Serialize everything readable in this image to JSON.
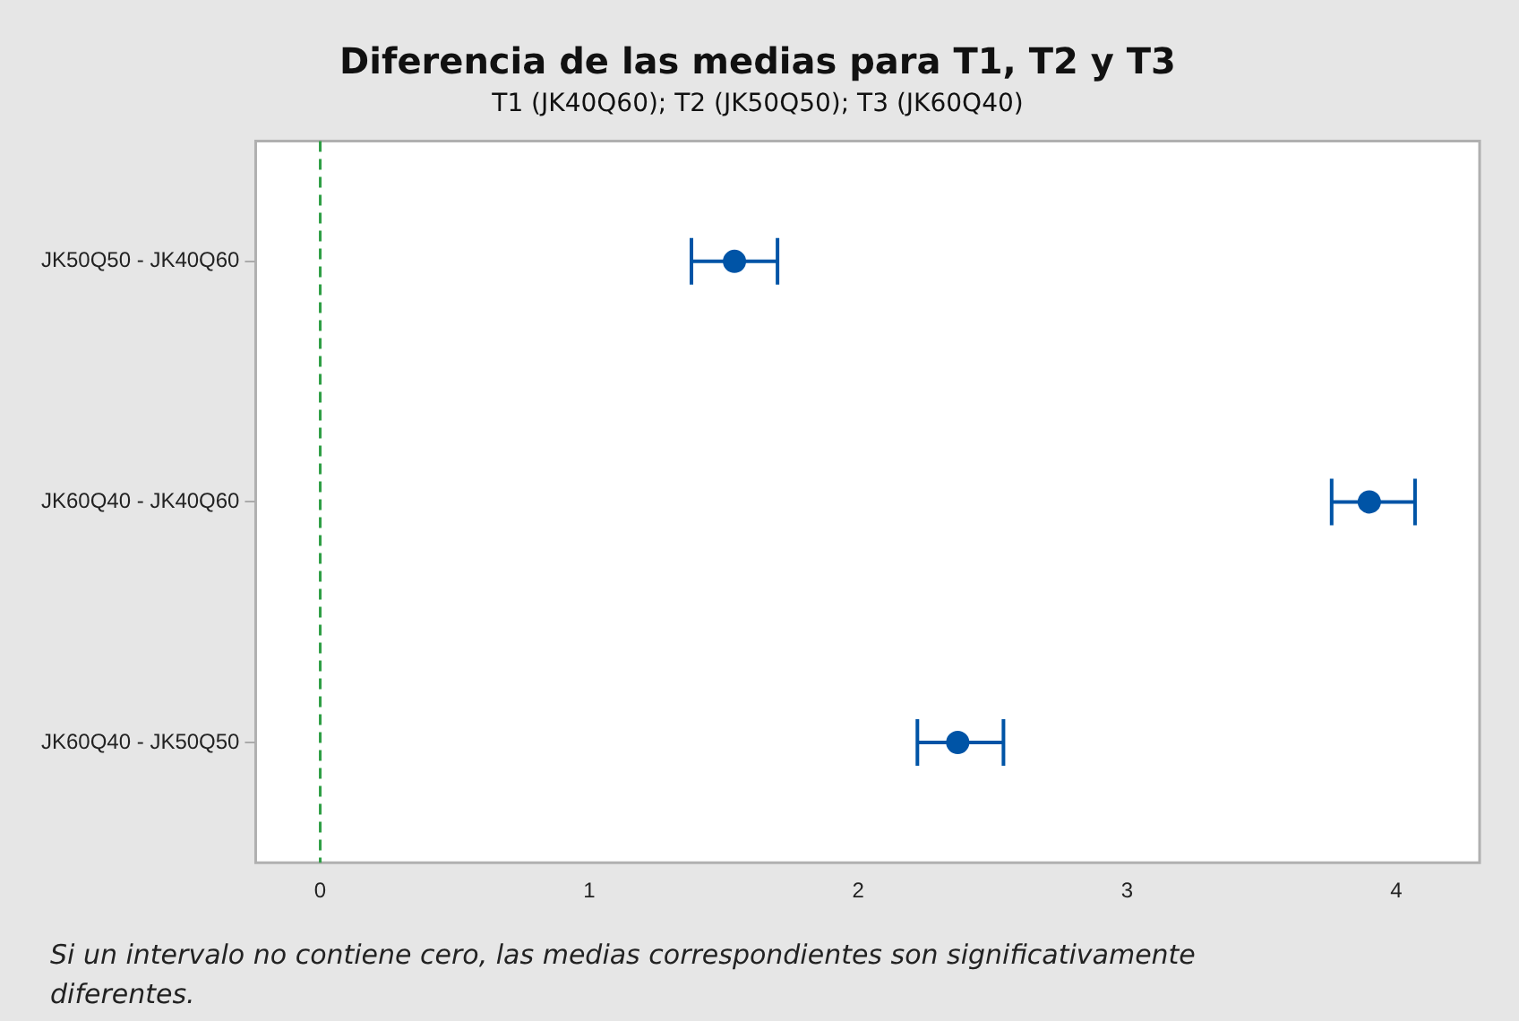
{
  "chart_data": {
    "type": "scatter",
    "orientation": "horizontal",
    "title": "Diferencia de las medias para T1, T2 y T3",
    "subtitle": "T1 (JK40Q60); T2 (JK50Q50); T3 (JK60Q40)",
    "categories": [
      "JK50Q50 - JK40Q60",
      "JK60Q40 - JK40Q60",
      "JK60Q40 - JK50Q50"
    ],
    "values": [
      1.54,
      3.9,
      2.37
    ],
    "errors": [
      [
        1.38,
        1.7
      ],
      [
        3.76,
        4.07
      ],
      [
        2.22,
        2.54
      ]
    ],
    "color": "#0054a6",
    "marker": "circle",
    "xlim": [
      -0.24,
      4.31
    ],
    "xticks": [
      0,
      1,
      2,
      3,
      4
    ],
    "ref_lines": [
      {
        "axis": "x",
        "value": 0,
        "color": "#2e9e44",
        "line_style": "dashed"
      }
    ],
    "annotations": [
      "Si un intervalo no contiene cero, las medias correspondientes son significativamente diferentes."
    ]
  }
}
